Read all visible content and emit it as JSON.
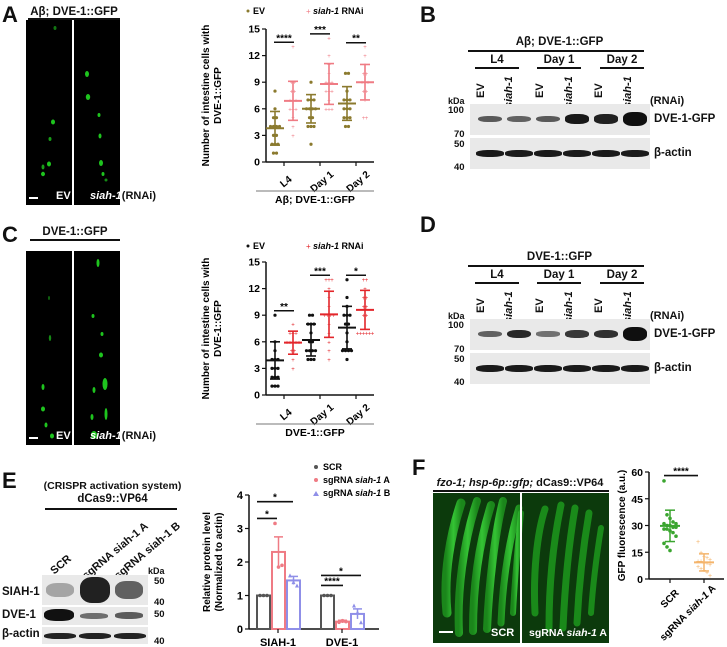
{
  "panels": {
    "A": {
      "letter": "A",
      "micrograph": {
        "title": "Aβ; DVE-1::GFP",
        "left_label": "EV",
        "right_label_italic": "siah-1",
        "right_label_suffix": "(RNAi)"
      }
    },
    "B": {
      "letter": "B",
      "title": "Aβ; DVE-1::GFP",
      "groups": [
        "L4",
        "Day 1",
        "Day 2"
      ],
      "lanes": [
        "EV",
        "siah-1",
        "EV",
        "siah-1",
        "EV",
        "siah-1"
      ],
      "rnai_label": "(RNAi)",
      "kda_label": "kDa",
      "markers_top": [
        "100",
        "70"
      ],
      "markers_bottom": [
        "50",
        "40"
      ],
      "blot_labels": [
        "DVE-1-GFP",
        "β-actin"
      ],
      "dve_band_intensity": [
        0.55,
        0.5,
        0.55,
        0.95,
        0.9,
        1.0
      ]
    },
    "C": {
      "letter": "C",
      "micrograph": {
        "title": "DVE-1::GFP",
        "left_label": "EV",
        "right_label_italic": "siah-1",
        "right_label_suffix": "(RNAi)"
      }
    },
    "D": {
      "letter": "D",
      "title": "DVE-1::GFP",
      "groups": [
        "L4",
        "Day 1",
        "Day 2"
      ],
      "lanes": [
        "EV",
        "siah-1",
        "EV",
        "siah-1",
        "EV",
        "siah-1"
      ],
      "rnai_label": "(RNAi)",
      "kda_label": "kDa",
      "markers_top": [
        "100",
        "70"
      ],
      "markers_bottom": [
        "50",
        "40"
      ],
      "blot_labels": [
        "DVE-1-GFP",
        "β-actin"
      ],
      "dve_band_intensity": [
        0.5,
        0.85,
        0.4,
        0.75,
        0.8,
        1.0
      ]
    },
    "E": {
      "letter": "E",
      "subtitle": "(CRISPR activation system)",
      "title": "dCas9::VP64",
      "lanes": [
        "SCR",
        "sgRNA siah-1 A",
        "sgRNA siah-1 B"
      ],
      "kda_label": "kDa",
      "markers": [
        "50",
        "40",
        "50",
        "40"
      ],
      "blot_labels": [
        "SIAH-1",
        "DVE-1",
        "β-actin"
      ]
    },
    "F": {
      "letter": "F",
      "title_italic": "fzo-1; hsp-6p::gfp;",
      "title_plain": " dCas9::VP64",
      "left_label": "SCR",
      "right_label_prefix": "sgRNA ",
      "right_label_italic": "siah-1",
      "right_label_suffix": " A"
    }
  },
  "chart_data": [
    {
      "id": "A-chart",
      "type": "scatter",
      "title": "",
      "xlabel": "Aβ; DVE-1::GFP",
      "ylabel": "Number of intestine cells with DVE-1::GFP",
      "categories": [
        "L4",
        "Day 1",
        "Day 2"
      ],
      "ylim": [
        0,
        15
      ],
      "yticks": [
        0,
        3,
        6,
        9,
        12,
        15
      ],
      "legend": [
        "EV",
        "siah-1 RNAi"
      ],
      "legend_position": "top",
      "colors": {
        "EV": "#8b7a2e",
        "siah-1 RNAi": "#ef7b84"
      },
      "series": [
        {
          "name": "EV",
          "mean": [
            3.8,
            6.0,
            6.6
          ],
          "sd": [
            1.9,
            1.6,
            1.9
          ],
          "points": [
            [
              1,
              1,
              2,
              2,
              2,
              3,
              3,
              4,
              4,
              4,
              4,
              5,
              5,
              6,
              8
            ],
            [
              2,
              4,
              4,
              4,
              5,
              5,
              6,
              6,
              6,
              6,
              7,
              7,
              7,
              9
            ],
            [
              4,
              4,
              5,
              5,
              5,
              6,
              6,
              6,
              7,
              7,
              7,
              8,
              10,
              10
            ]
          ]
        },
        {
          "name": "siah-1 RNAi",
          "mean": [
            6.9,
            8.8,
            9.0
          ],
          "sd": [
            2.2,
            2.3,
            2.0
          ],
          "points": [
            [
              3,
              4,
              5,
              6,
              6,
              6,
              7,
              7,
              7,
              8,
              8,
              9,
              9,
              13
            ],
            [
              6,
              6,
              6,
              7,
              8,
              8,
              8,
              9,
              9,
              9,
              10,
              11,
              12,
              14
            ],
            [
              5,
              5,
              7,
              8,
              8,
              9,
              9,
              9,
              10,
              10,
              11,
              12,
              13
            ]
          ]
        }
      ],
      "significance": [
        "****",
        "***",
        "**"
      ]
    },
    {
      "id": "C-chart",
      "type": "scatter",
      "title": "",
      "xlabel": "DVE-1::GFP",
      "ylabel": "Number of intestine cells with DVE-1::GFP",
      "categories": [
        "L4",
        "Day 1",
        "Day 2"
      ],
      "ylim": [
        0,
        15
      ],
      "yticks": [
        0,
        3,
        6,
        9,
        12,
        15
      ],
      "legend": [
        "EV",
        "siah-1 RNAi"
      ],
      "legend_position": "top",
      "colors": {
        "EV": "#111111",
        "siah-1 RNAi": "#e3262b"
      },
      "series": [
        {
          "name": "EV",
          "mean": [
            3.9,
            6.2,
            7.6
          ],
          "sd": [
            2.1,
            1.8,
            2.4
          ],
          "points": [
            [
              1,
              1,
              1,
              2,
              2,
              2,
              3,
              3,
              3,
              4,
              4,
              4,
              5,
              6,
              9
            ],
            [
              4,
              4,
              4,
              5,
              5,
              5,
              5,
              6,
              6,
              7,
              8,
              8,
              8,
              9,
              9
            ],
            [
              4,
              5,
              5,
              5,
              5,
              6,
              7,
              8,
              8,
              9,
              9,
              9,
              10,
              11,
              13
            ]
          ]
        },
        {
          "name": "siah-1 RNAi",
          "mean": [
            5.9,
            9.1,
            9.6
          ],
          "sd": [
            1.3,
            2.6,
            2.2
          ],
          "points": [
            [
              3,
              4,
              5,
              5,
              6,
              6,
              6,
              6,
              6,
              7,
              7,
              7,
              8
            ],
            [
              4,
              5,
              6,
              7,
              8,
              9,
              9,
              9,
              9,
              10,
              11,
              12,
              13,
              13,
              13
            ],
            [
              7,
              7,
              7,
              7,
              7,
              7,
              9,
              9,
              10,
              10,
              11,
              11,
              12,
              13,
              13
            ]
          ]
        }
      ],
      "significance": [
        "**",
        "***",
        "*"
      ]
    },
    {
      "id": "E-chart",
      "type": "bar",
      "title": "",
      "xlabel": "",
      "ylabel": "Relative protein level (Normalized to actin)",
      "categories": [
        "SIAH-1",
        "DVE-1"
      ],
      "ylim": [
        0,
        4
      ],
      "yticks": [
        0,
        1,
        2,
        3,
        4
      ],
      "legend": [
        "SCR",
        "sgRNA siah-1 A",
        "sgRNA siah-1 B"
      ],
      "legend_position": "top-right",
      "colors": {
        "SCR": "#555555",
        "sgRNA siah-1 A": "#ef7b84",
        "sgRNA siah-1 B": "#8f8fe8"
      },
      "series": [
        {
          "name": "SCR",
          "values": [
            1.0,
            1.0
          ],
          "err": [
            0,
            0
          ],
          "points": [
            [
              1,
              1,
              1
            ],
            [
              1,
              1,
              1
            ]
          ]
        },
        {
          "name": "sgRNA siah-1 A",
          "values": [
            2.3,
            0.22
          ],
          "err": [
            0.45,
            0.04
          ],
          "points": [
            [
              3.15,
              1.85,
              1.9
            ],
            [
              0.2,
              0.25,
              0.22
            ]
          ]
        },
        {
          "name": "sgRNA siah-1 B",
          "values": [
            1.45,
            0.45
          ],
          "err": [
            0.12,
            0.15
          ],
          "points": [
            [
              1.6,
              1.4,
              1.3
            ],
            [
              0.7,
              0.5,
              0.2
            ]
          ]
        }
      ],
      "significance": [
        {
          "category": "SIAH-1",
          "compare": "SCR vs A",
          "label": "*"
        },
        {
          "category": "SIAH-1",
          "compare": "SCR vs B",
          "label": "*"
        },
        {
          "category": "DVE-1",
          "compare": "SCR vs A",
          "label": "****"
        },
        {
          "category": "DVE-1",
          "compare": "SCR vs B",
          "label": "*"
        }
      ]
    },
    {
      "id": "F-chart",
      "type": "scatter",
      "title": "",
      "xlabel": "",
      "ylabel": "GFP fluorescence (a.u.)",
      "categories": [
        "SCR",
        "sgRNA siah-1 A"
      ],
      "ylim": [
        0,
        60
      ],
      "yticks": [
        0,
        15,
        30,
        45,
        60
      ],
      "colors": {
        "SCR": "#3aa52f",
        "sgRNA siah-1 A": "#f4b46b"
      },
      "series": [
        {
          "name": "SCR",
          "mean": 29.8,
          "sd": 8.8,
          "points": [
            55,
            36,
            34,
            32,
            31,
            31,
            30,
            30,
            29,
            29,
            28,
            28,
            27,
            26,
            24,
            20,
            18,
            16
          ]
        },
        {
          "name": "sgRNA siah-1 A",
          "mean": 9.3,
          "sd": 4.8,
          "points": [
            21,
            15,
            13,
            12,
            11,
            10,
            10,
            9,
            9,
            8,
            7,
            6,
            5,
            4,
            2
          ]
        }
      ],
      "significance": [
        "****"
      ]
    }
  ]
}
